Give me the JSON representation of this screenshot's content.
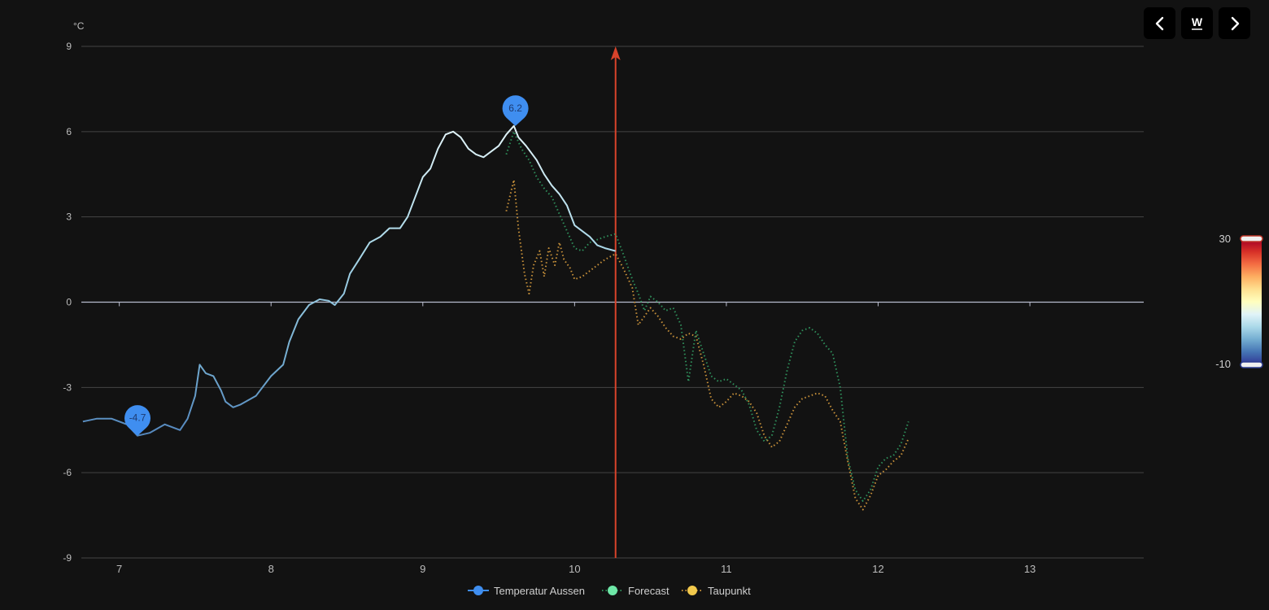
{
  "nav": {
    "prev_icon": "chevron-left-icon",
    "mode_label": "W",
    "next_icon": "chevron-right-icon"
  },
  "colors": {
    "background": "#121212",
    "forecast": "#2f8f5b",
    "taupunkt": "#c8913a",
    "marker": "#3f8ef0",
    "now_line": "#d8432b"
  },
  "chart_data": {
    "type": "line",
    "ylabel": "°C",
    "ylim": [
      -9,
      9
    ],
    "yticks": [
      "9",
      "6",
      "3",
      "0",
      "-3",
      "-6",
      "-9"
    ],
    "xlim": [
      6.75,
      13.75
    ],
    "xticks": [
      "7",
      "8",
      "9",
      "10",
      "11",
      "12",
      "13"
    ],
    "now_x": 10.27,
    "legend": [
      {
        "name": "Temperatur Aussen",
        "color": "#3f8ef0",
        "style": "solid"
      },
      {
        "name": "Forecast",
        "color": "#6ee7a7",
        "style": "dotted"
      },
      {
        "name": "Taupunkt",
        "color": "#f2c94c",
        "style": "dotted"
      }
    ],
    "markers": [
      {
        "label": "-4.7",
        "x": 7.12,
        "y": -4.7
      },
      {
        "label": "6.2",
        "x": 9.61,
        "y": 6.2
      }
    ],
    "visual_map": {
      "max_label": "30",
      "min_label": "-10",
      "max": 30,
      "min": -10,
      "colors": [
        "#313695",
        "#4575b4",
        "#74add1",
        "#abd9e9",
        "#e0f3f8",
        "#ffffbf",
        "#fee090",
        "#fdae61",
        "#f46d43",
        "#d73027",
        "#a50026"
      ]
    },
    "series": [
      {
        "name": "Temperatur Aussen",
        "style": "solid",
        "x": [
          6.76,
          6.85,
          6.95,
          7.05,
          7.12,
          7.2,
          7.3,
          7.4,
          7.45,
          7.5,
          7.53,
          7.57,
          7.62,
          7.67,
          7.7,
          7.75,
          7.8,
          7.9,
          8.0,
          8.08,
          8.12,
          8.18,
          8.25,
          8.32,
          8.38,
          8.42,
          8.48,
          8.52,
          8.58,
          8.65,
          8.72,
          8.78,
          8.85,
          8.9,
          9.0,
          9.05,
          9.1,
          9.15,
          9.2,
          9.25,
          9.3,
          9.35,
          9.4,
          9.45,
          9.5,
          9.55,
          9.6,
          9.63,
          9.68,
          9.75,
          9.8,
          9.85,
          9.9,
          9.95,
          10.0,
          10.05,
          10.1,
          10.15,
          10.2,
          10.27
        ],
        "y": [
          -4.2,
          -4.1,
          -4.1,
          -4.3,
          -4.7,
          -4.6,
          -4.3,
          -4.5,
          -4.1,
          -3.3,
          -2.2,
          -2.5,
          -2.6,
          -3.1,
          -3.5,
          -3.7,
          -3.6,
          -3.3,
          -2.6,
          -2.2,
          -1.4,
          -0.6,
          -0.1,
          0.1,
          0.05,
          -0.1,
          0.3,
          1.0,
          1.5,
          2.1,
          2.3,
          2.6,
          2.6,
          3.0,
          4.4,
          4.7,
          5.4,
          5.9,
          6.0,
          5.8,
          5.4,
          5.2,
          5.1,
          5.3,
          5.5,
          5.9,
          6.2,
          5.8,
          5.5,
          5.0,
          4.5,
          4.1,
          3.8,
          3.4,
          2.7,
          2.5,
          2.3,
          2.0,
          1.9,
          1.8
        ]
      },
      {
        "name": "Forecast",
        "style": "dotted",
        "x": [
          9.55,
          9.6,
          9.65,
          9.7,
          9.75,
          9.8,
          9.85,
          9.9,
          9.95,
          10.0,
          10.05,
          10.1,
          10.15,
          10.2,
          10.27,
          10.32,
          10.38,
          10.42,
          10.46,
          10.5,
          10.55,
          10.6,
          10.65,
          10.7,
          10.75,
          10.8,
          10.85,
          10.9,
          10.95,
          11.0,
          11.05,
          11.1,
          11.15,
          11.2,
          11.25,
          11.3,
          11.35,
          11.4,
          11.45,
          11.5,
          11.55,
          11.6,
          11.65,
          11.7,
          11.75,
          11.8,
          11.85,
          11.9,
          11.95,
          12.0,
          12.05,
          12.1,
          12.15,
          12.2
        ],
        "y": [
          5.2,
          6.0,
          5.4,
          5.0,
          4.4,
          4.0,
          3.7,
          3.1,
          2.5,
          1.9,
          1.8,
          2.1,
          2.2,
          2.3,
          2.4,
          1.7,
          0.8,
          0.3,
          -0.3,
          0.2,
          0.0,
          -0.3,
          -0.2,
          -0.8,
          -2.8,
          -1.0,
          -1.8,
          -2.6,
          -2.8,
          -2.7,
          -2.9,
          -3.1,
          -3.6,
          -4.5,
          -4.9,
          -4.7,
          -3.7,
          -2.4,
          -1.4,
          -1.0,
          -0.9,
          -1.1,
          -1.5,
          -1.8,
          -3.0,
          -5.5,
          -6.6,
          -7.0,
          -6.6,
          -5.8,
          -5.5,
          -5.4,
          -5.0,
          -4.2
        ]
      },
      {
        "name": "Taupunkt",
        "style": "dotted",
        "x": [
          9.55,
          9.6,
          9.63,
          9.67,
          9.7,
          9.73,
          9.77,
          9.8,
          9.83,
          9.87,
          9.9,
          9.93,
          9.97,
          10.0,
          10.05,
          10.1,
          10.15,
          10.2,
          10.27,
          10.32,
          10.38,
          10.42,
          10.46,
          10.5,
          10.55,
          10.6,
          10.65,
          10.7,
          10.75,
          10.8,
          10.85,
          10.9,
          10.95,
          11.0,
          11.05,
          11.1,
          11.15,
          11.2,
          11.25,
          11.3,
          11.35,
          11.4,
          11.45,
          11.5,
          11.55,
          11.6,
          11.65,
          11.7,
          11.75,
          11.8,
          11.85,
          11.9,
          11.95,
          12.0,
          12.05,
          12.1,
          12.15,
          12.2
        ],
        "y": [
          3.2,
          4.3,
          2.6,
          1.0,
          0.3,
          1.3,
          1.8,
          0.9,
          1.9,
          1.3,
          2.1,
          1.5,
          1.2,
          0.8,
          0.9,
          1.1,
          1.3,
          1.5,
          1.7,
          1.2,
          0.5,
          -0.8,
          -0.5,
          -0.2,
          -0.5,
          -0.9,
          -1.2,
          -1.3,
          -1.1,
          -1.2,
          -2.2,
          -3.4,
          -3.7,
          -3.5,
          -3.2,
          -3.3,
          -3.5,
          -3.9,
          -4.7,
          -5.1,
          -4.9,
          -4.3,
          -3.7,
          -3.4,
          -3.3,
          -3.2,
          -3.3,
          -3.8,
          -4.2,
          -5.6,
          -6.9,
          -7.3,
          -6.8,
          -6.1,
          -5.9,
          -5.6,
          -5.4,
          -4.8
        ]
      }
    ]
  }
}
